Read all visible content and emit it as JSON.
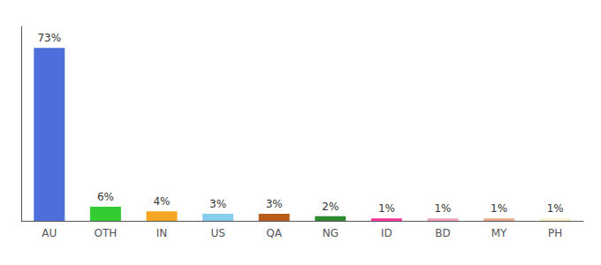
{
  "chart_data": {
    "type": "bar",
    "categories": [
      "AU",
      "OTH",
      "IN",
      "US",
      "QA",
      "NG",
      "ID",
      "BD",
      "MY",
      "PH"
    ],
    "values": [
      73,
      6,
      4,
      3,
      3,
      2,
      1,
      1,
      1,
      1
    ],
    "value_labels": [
      "73%",
      "6%",
      "4%",
      "3%",
      "3%",
      "2%",
      "1%",
      "1%",
      "1%",
      "1%"
    ],
    "colors": [
      "#4d6fdb",
      "#33cc33",
      "#f5a623",
      "#88ccee",
      "#b85c1a",
      "#2d8a2d",
      "#ff3399",
      "#f0a0b8",
      "#e8a888",
      "#f5f0cc"
    ],
    "data_labels": true,
    "ylim": [
      0,
      82
    ],
    "grid": false,
    "tick_labels": "x"
  }
}
